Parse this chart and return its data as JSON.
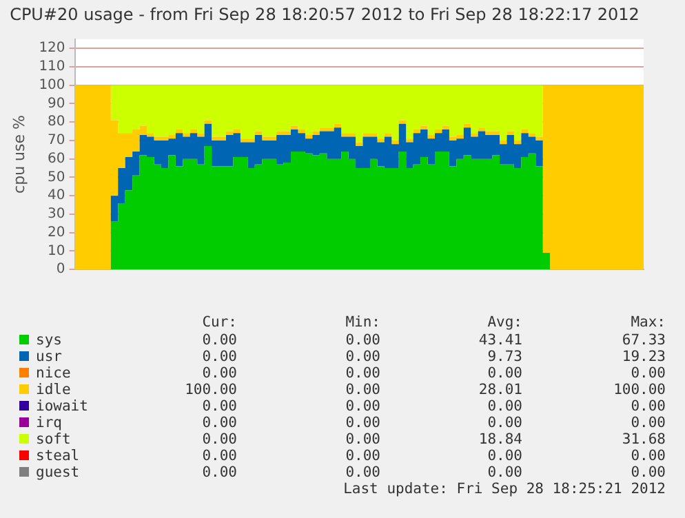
{
  "chart_data": {
    "type": "area",
    "title": "CPU#20 usage - from Fri Sep 28 18:20:57 2012 to Fri Sep 28 18:22:17 2012",
    "ylabel": "cpu use %",
    "stacked": true,
    "grid": "y",
    "legend": "bottom",
    "categories": [
      null,
      null,
      null,
      null,
      null,
      null,
      null,
      null,
      null,
      null,
      null,
      null,
      null,
      null,
      null,
      null,
      null,
      null,
      null,
      null,
      null,
      null,
      null,
      null,
      null,
      null,
      null,
      null,
      null,
      null,
      null,
      null,
      null,
      null,
      null,
      null,
      null,
      null,
      null,
      null,
      null,
      null,
      null,
      null,
      null,
      null,
      null,
      null,
      null,
      null,
      null,
      null,
      null,
      null,
      null,
      null,
      null,
      null,
      null,
      null,
      null,
      null,
      null,
      null,
      null,
      null,
      null,
      null,
      null,
      null,
      null,
      null,
      null,
      null,
      null,
      null,
      null,
      null,
      null,
      null
    ],
    "ylim": [
      0,
      125
    ],
    "yticks": [
      0,
      10,
      20,
      30,
      40,
      50,
      60,
      70,
      80,
      90,
      100,
      110,
      120
    ],
    "series": [
      {
        "name": "sys",
        "color": "#00cc00",
        "values": [
          0,
          0,
          0,
          0,
          0,
          26,
          36,
          43,
          51,
          62,
          61,
          57,
          55,
          62,
          56,
          60,
          60,
          57,
          67,
          56,
          56,
          56,
          61,
          61,
          55,
          57,
          60,
          60,
          57,
          58,
          64,
          64,
          63,
          62,
          63,
          60,
          60,
          64,
          60,
          55,
          55,
          60,
          56,
          55,
          55,
          64,
          55,
          57,
          61,
          57,
          64,
          64,
          56,
          60,
          62,
          60,
          60,
          60,
          62,
          57,
          57,
          55,
          61,
          63,
          56,
          9,
          0,
          0,
          0,
          0,
          0,
          0,
          0,
          0,
          0,
          0,
          0,
          0,
          0,
          0
        ]
      },
      {
        "name": "usr",
        "color": "#0066b3",
        "values": [
          0,
          0,
          0,
          0,
          0,
          14,
          19,
          18,
          13,
          11,
          11,
          13,
          15,
          9,
          18,
          12,
          14,
          15,
          12,
          14,
          14,
          17,
          13,
          8,
          14,
          16,
          10,
          10,
          16,
          15,
          12,
          10,
          8,
          11,
          12,
          15,
          17,
          8,
          12,
          12,
          17,
          12,
          13,
          17,
          13,
          15,
          14,
          17,
          15,
          14,
          10,
          12,
          14,
          11,
          15,
          12,
          15,
          13,
          11,
          11,
          16,
          13,
          13,
          9,
          14,
          0,
          0,
          0,
          0,
          0,
          0,
          0,
          0,
          0,
          0,
          0,
          0,
          0,
          0,
          0
        ]
      },
      {
        "name": "nice",
        "color": "#ff8000",
        "values": [
          null,
          null,
          null,
          null,
          null,
          null,
          null,
          null,
          null,
          null,
          null,
          null,
          null,
          null,
          null,
          null,
          null,
          null,
          null,
          null,
          null,
          null,
          null,
          null,
          null,
          null,
          null,
          null,
          null,
          null,
          null,
          null,
          null,
          null,
          null,
          null,
          null,
          null,
          null,
          null,
          null,
          null,
          null,
          null,
          null,
          null,
          null,
          null,
          null,
          null,
          null,
          null,
          null,
          null,
          null,
          null,
          null,
          null,
          null,
          null,
          null,
          null,
          null,
          null,
          null,
          null,
          null,
          null,
          null,
          null,
          null,
          null,
          null,
          null,
          null,
          null,
          null,
          null,
          null,
          null
        ]
      },
      {
        "name": "idle",
        "color": "#ffcc00",
        "values": [
          100,
          100,
          100,
          100,
          100,
          41,
          19,
          13,
          12,
          5,
          2,
          2,
          2,
          2,
          2,
          2,
          2,
          2,
          2,
          2,
          2,
          2,
          2,
          2,
          2,
          2,
          2,
          2,
          2,
          2,
          2,
          2,
          2,
          2,
          2,
          2,
          2,
          2,
          2,
          2,
          2,
          2,
          2,
          2,
          2,
          2,
          2,
          2,
          2,
          2,
          2,
          2,
          2,
          2,
          2,
          2,
          2,
          2,
          2,
          2,
          2,
          2,
          2,
          2,
          2,
          91,
          100,
          100,
          100,
          100,
          100,
          100,
          100,
          100,
          100,
          100,
          100,
          100,
          100,
          100
        ]
      },
      {
        "name": "iowait",
        "color": "#330099",
        "values": [
          null,
          null,
          null,
          null,
          null,
          null,
          null,
          null,
          null,
          null,
          null,
          null,
          null,
          null,
          null,
          null,
          null,
          null,
          null,
          null,
          null,
          null,
          null,
          null,
          null,
          null,
          null,
          null,
          null,
          null,
          null,
          null,
          null,
          null,
          null,
          null,
          null,
          null,
          null,
          null,
          null,
          null,
          null,
          null,
          null,
          null,
          null,
          null,
          null,
          null,
          null,
          null,
          null,
          null,
          null,
          null,
          null,
          null,
          null,
          null,
          null,
          null,
          null,
          null,
          null,
          null,
          null,
          null,
          null,
          null,
          null,
          null,
          null,
          null,
          null,
          null,
          null,
          null,
          null,
          null
        ]
      },
      {
        "name": "irq",
        "color": "#990099",
        "values": [
          null,
          null,
          null,
          null,
          null,
          null,
          null,
          null,
          null,
          null,
          null,
          null,
          null,
          null,
          null,
          null,
          null,
          null,
          null,
          null,
          null,
          null,
          null,
          null,
          null,
          null,
          null,
          null,
          null,
          null,
          null,
          null,
          null,
          null,
          null,
          null,
          null,
          null,
          null,
          null,
          null,
          null,
          null,
          null,
          null,
          null,
          null,
          null,
          null,
          null,
          null,
          null,
          null,
          null,
          null,
          null,
          null,
          null,
          null,
          null,
          null,
          null,
          null,
          null,
          null,
          null,
          null,
          null,
          null,
          null,
          null,
          null,
          null,
          null,
          null,
          null,
          null,
          null,
          null,
          null
        ]
      },
      {
        "name": "soft",
        "color": "#ccff00",
        "values": [
          0,
          0,
          0,
          0,
          0,
          19,
          26,
          26,
          24,
          22,
          26,
          28,
          28,
          27,
          24,
          26,
          24,
          26,
          19,
          28,
          28,
          25,
          24,
          29,
          29,
          25,
          28,
          28,
          25,
          25,
          22,
          24,
          27,
          25,
          23,
          23,
          21,
          26,
          26,
          31,
          26,
          26,
          29,
          26,
          30,
          19,
          29,
          24,
          22,
          27,
          24,
          22,
          28,
          27,
          21,
          26,
          23,
          25,
          25,
          30,
          25,
          30,
          24,
          26,
          28,
          0,
          0,
          0,
          0,
          0,
          0,
          0,
          0,
          0,
          0,
          0,
          0,
          0,
          0,
          0
        ]
      },
      {
        "name": "steal",
        "color": "#ff0000",
        "values": [
          null,
          null,
          null,
          null,
          null,
          null,
          null,
          null,
          null,
          null,
          null,
          null,
          null,
          null,
          null,
          null,
          null,
          null,
          null,
          null,
          null,
          null,
          null,
          null,
          null,
          null,
          null,
          null,
          null,
          null,
          null,
          null,
          null,
          null,
          null,
          null,
          null,
          null,
          null,
          null,
          null,
          null,
          null,
          null,
          null,
          null,
          null,
          null,
          null,
          null,
          null,
          null,
          null,
          null,
          null,
          null,
          null,
          null,
          null,
          null,
          null,
          null,
          null,
          null,
          null,
          null,
          null,
          null,
          null,
          null,
          null,
          null,
          null,
          null,
          null,
          null,
          null,
          null,
          null,
          null
        ]
      },
      {
        "name": "guest",
        "color": "#808080",
        "values": [
          null,
          null,
          null,
          null,
          null,
          null,
          null,
          null,
          null,
          null,
          null,
          null,
          null,
          null,
          null,
          null,
          null,
          null,
          null,
          null,
          null,
          null,
          null,
          null,
          null,
          null,
          null,
          null,
          null,
          null,
          null,
          null,
          null,
          null,
          null,
          null,
          null,
          null,
          null,
          null,
          null,
          null,
          null,
          null,
          null,
          null,
          null,
          null,
          null,
          null,
          null,
          null,
          null,
          null,
          null,
          null,
          null,
          null,
          null,
          null,
          null,
          null,
          null,
          null,
          null,
          null,
          null,
          null,
          null,
          null,
          null,
          null,
          null,
          null,
          null,
          null,
          null,
          null,
          null,
          null
        ]
      }
    ],
    "annotations": [
      "Cur:",
      "Min:",
      "Avg:",
      "Max:",
      "0.00",
      "0.00",
      "43.41",
      "67.33",
      "0.00",
      "0.00",
      "9.73",
      "19.23",
      "0.00",
      "0.00",
      "0.00",
      "0.00",
      "100.00",
      "0.00",
      "28.01",
      "100.00",
      "0.00",
      "0.00",
      "0.00",
      "0.00",
      "0.00",
      "0.00",
      "0.00",
      "0.00",
      "0.00",
      "0.00",
      "18.84",
      "31.68",
      "0.00",
      "0.00",
      "0.00",
      "0.00",
      "0.00",
      "0.00",
      "0.00",
      "0.00",
      "Last update: Fri Sep 28 18:25:21 2012"
    ]
  }
}
